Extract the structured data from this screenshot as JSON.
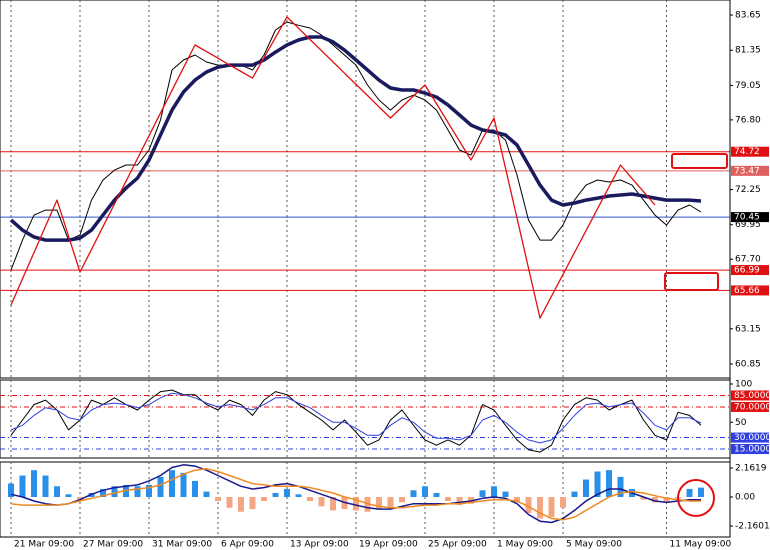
{
  "chart_data": [
    {
      "type": "line",
      "series": [
        {
          "color": "#000000",
          "width": 1,
          "values": [
            66.99,
            68.95,
            70.58,
            70.91,
            70.91,
            68.95,
            69.28,
            71.56,
            72.87,
            73.52,
            73.85,
            73.85,
            74.83,
            76.79,
            80.06,
            80.71,
            81.04,
            80.58,
            80.38,
            80.38,
            80.38,
            80.06,
            81.04,
            82.67,
            83.19,
            82.98,
            82.8,
            82.34,
            81.69,
            81.04,
            80.38,
            79.08,
            78.1,
            77.44,
            78.1,
            78.42,
            78.1,
            77.44,
            76.14,
            74.83,
            74.5,
            76.14,
            76.14,
            75.48,
            73.2,
            70.26,
            68.95,
            68.95,
            69.93,
            71.56,
            72.54,
            72.87,
            72.74,
            72.87,
            72.54,
            71.56,
            70.58,
            69.93,
            70.91,
            71.24,
            70.78
          ]
        },
        {
          "color": "#1a1a5e",
          "width": 3.5,
          "values": [
            70.26,
            69.6,
            69.15,
            68.95,
            68.95,
            68.95,
            69.08,
            69.6,
            70.58,
            71.56,
            72.35,
            73.0,
            74.18,
            75.81,
            77.44,
            78.62,
            79.4,
            79.93,
            80.25,
            80.38,
            80.38,
            80.38,
            80.71,
            81.23,
            81.69,
            82.02,
            82.21,
            82.21,
            81.89,
            81.36,
            80.71,
            80.06,
            79.4,
            78.88,
            78.75,
            78.75,
            78.55,
            78.29,
            77.77,
            77.12,
            76.46,
            76.14,
            76.01,
            75.81,
            75.16,
            73.85,
            72.54,
            71.56,
            71.24,
            71.37,
            71.56,
            71.69,
            71.83,
            71.89,
            71.96,
            71.83,
            71.69,
            71.56,
            71.56,
            71.56,
            71.5
          ]
        },
        {
          "color": "#e01010",
          "width": 1.3,
          "values": [
            64.7,
            66.42,
            68.13,
            69.85,
            71.56,
            69.21,
            66.86,
            68.34,
            69.83,
            71.31,
            72.79,
            74.28,
            75.76,
            77.24,
            78.73,
            80.21,
            81.69,
            81.26,
            80.83,
            80.39,
            79.96,
            79.53,
            80.86,
            82.19,
            83.52,
            82.79,
            82.05,
            81.32,
            80.59,
            79.85,
            79.12,
            78.39,
            77.65,
            76.92,
            77.64,
            78.36,
            79.08,
            77.86,
            76.63,
            75.41,
            74.18,
            75.55,
            76.92,
            73.65,
            70.39,
            67.12,
            63.85,
            65.28,
            66.71,
            68.14,
            69.56,
            70.99,
            72.42,
            73.85,
            72.98,
            72.11,
            71.24,
            null,
            null,
            null,
            null
          ]
        }
      ],
      "ylim": [
        59.94,
        84.63
      ],
      "yticks": [
        83.65,
        81.35,
        79.05,
        {
          "value": 76.8,
          "label": "76.80"
        },
        72.25,
        69.95,
        {
          "value": 67.7,
          "label": "67.70"
        },
        63.15,
        60.85
      ],
      "levels": [
        {
          "value": 74.72,
          "color": "#e01010"
        },
        {
          "value": 73.47,
          "color": "#e06060"
        },
        {
          "value": 70.45,
          "color": "#3050d0",
          "label_color": "#000000"
        },
        {
          "value": 66.99,
          "color": "#e01010"
        },
        {
          "value": 65.66,
          "color": "#e01010"
        }
      ]
    },
    {
      "type": "line",
      "series": [
        {
          "color": "#000000",
          "width": 1,
          "values": [
            33,
            53,
            73,
            79,
            66,
            40,
            53,
            79,
            73,
            82,
            73,
            66,
            79,
            90,
            92,
            86,
            86,
            73,
            66,
            79,
            73,
            59,
            79,
            90,
            86,
            73,
            63,
            53,
            40,
            53,
            37,
            20,
            27,
            53,
            66,
            46,
            27,
            20,
            27,
            20,
            33,
            73,
            66,
            46,
            27,
            14,
            11,
            20,
            53,
            73,
            82,
            79,
            66,
            73,
            79,
            53,
            33,
            27,
            63,
            59,
            46
          ]
        },
        {
          "color": "#3040e0",
          "width": 1,
          "values": [
            40,
            46,
            59,
            69,
            66,
            56,
            53,
            66,
            73,
            75,
            73,
            69,
            73,
            82,
            88,
            86,
            82,
            75,
            70,
            73,
            70,
            66,
            73,
            82,
            82,
            75,
            69,
            59,
            50,
            50,
            42,
            33,
            33,
            46,
            56,
            50,
            37,
            29,
            29,
            27,
            33,
            53,
            59,
            50,
            37,
            27,
            23,
            27,
            42,
            59,
            73,
            75,
            70,
            73,
            75,
            62,
            46,
            40,
            56,
            56,
            49
          ]
        }
      ],
      "ylim": [
        3.3,
        105.2
      ],
      "yticks": [
        100,
        50
      ],
      "levels": [
        {
          "value": 85,
          "label": "85.0000",
          "color": "#e01010"
        },
        {
          "value": 70,
          "label": "70.0000",
          "color": "#e01010"
        },
        {
          "value": 30,
          "label": "30.0000",
          "color": "#3040e0"
        },
        {
          "value": 15,
          "label": "15.0000",
          "color": "#3040e0"
        }
      ]
    },
    {
      "type": "bar",
      "categories": [
        "21 Mar 09:00",
        null,
        null,
        null,
        null,
        null,
        "27 Mar 09:00",
        null,
        null,
        null,
        null,
        null,
        "31 Mar 09:00",
        null,
        null,
        null,
        null,
        null,
        "6 Apr 09:00",
        null,
        null,
        null,
        null,
        null,
        "13 Apr 09:00",
        null,
        null,
        null,
        null,
        null,
        "19 Apr 09:00",
        null,
        null,
        null,
        null,
        null,
        "25 Apr 09:00",
        null,
        null,
        null,
        null,
        null,
        "1 May 09:00",
        null,
        null,
        null,
        null,
        null,
        "5 May 09:00",
        null,
        null,
        null,
        null,
        null,
        null,
        null,
        null,
        "11 May 09:00",
        null,
        null,
        null
      ],
      "values": [
        1.0,
        1.6,
        2.0,
        1.6,
        0.8,
        0.2,
        -0.2,
        0.3,
        0.6,
        0.8,
        0.9,
        0.8,
        0.9,
        1.5,
        2.0,
        1.8,
        1.2,
        0.4,
        -0.3,
        -0.8,
        -1.1,
        -0.9,
        -0.3,
        0.3,
        0.6,
        0.2,
        -0.3,
        -0.7,
        -1.0,
        -0.9,
        -1.0,
        -1.1,
        -0.9,
        -0.8,
        -0.4,
        0.5,
        0.8,
        0.3,
        -0.3,
        -0.6,
        -0.5,
        0.5,
        0.8,
        0.4,
        -0.4,
        -1.2,
        -1.6,
        -1.5,
        -0.8,
        0.4,
        1.3,
        1.9,
        2.0,
        1.5,
        0.6,
        -0.2,
        -0.4,
        -0.4,
        -0.1,
        0.6,
        0.7
      ],
      "color": "#2a8fe8",
      "negative_color": "#f4a582",
      "series": [
        {
          "color": "#1a1a8e",
          "width": 1.5,
          "values": [
            0.2,
            0.0,
            -0.3,
            -0.5,
            -0.6,
            -0.5,
            -0.2,
            0.2,
            0.5,
            0.7,
            0.8,
            0.9,
            1.2,
            1.6,
            2.2,
            2.4,
            2.3,
            2.0,
            1.6,
            1.2,
            0.8,
            0.6,
            0.7,
            0.9,
            1.0,
            0.8,
            0.5,
            0.2,
            -0.1,
            -0.4,
            -0.6,
            -0.8,
            -0.9,
            -0.9,
            -0.7,
            -0.5,
            -0.5,
            -0.5,
            -0.5,
            -0.4,
            -0.3,
            -0.1,
            0.0,
            -0.1,
            -0.5,
            -1.3,
            -1.8,
            -1.9,
            -1.6,
            -1.0,
            -0.3,
            0.2,
            0.6,
            0.6,
            0.3,
            0.0,
            -0.3,
            -0.4,
            -0.3,
            -0.2,
            -0.2
          ]
        },
        {
          "color": "#f08a20",
          "width": 1.5,
          "values": [
            -0.5,
            -0.6,
            -0.6,
            -0.6,
            -0.6,
            -0.5,
            -0.3,
            -0.1,
            0.1,
            0.3,
            0.5,
            0.6,
            0.7,
            0.9,
            1.3,
            1.7,
            2.0,
            2.1,
            1.9,
            1.6,
            1.3,
            1.0,
            0.9,
            0.8,
            0.8,
            0.8,
            0.7,
            0.5,
            0.3,
            0.0,
            -0.2,
            -0.5,
            -0.7,
            -0.8,
            -0.8,
            -0.7,
            -0.6,
            -0.6,
            -0.5,
            -0.5,
            -0.4,
            -0.3,
            -0.2,
            -0.2,
            -0.3,
            -0.7,
            -1.2,
            -1.6,
            -1.7,
            -1.5,
            -1.0,
            -0.5,
            0.0,
            0.3,
            0.4,
            0.3,
            0.1,
            -0.1,
            -0.2,
            -0.3,
            -0.3
          ]
        }
      ],
      "ylim": [
        -2.98,
        2.608
      ],
      "yticks": [
        2.1619,
        {
          "value": 0,
          "label": "0.00"
        },
        -2.1601
      ]
    }
  ]
}
